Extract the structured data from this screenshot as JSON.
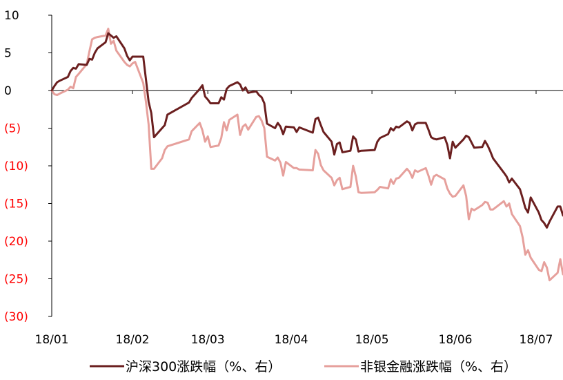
{
  "chart_data": {
    "type": "line",
    "title": "",
    "xlabel": "",
    "ylabel": "",
    "ylim": [
      -30,
      10
    ],
    "yticks": [
      {
        "value": 10,
        "label": "10",
        "color": "#000000"
      },
      {
        "value": 5,
        "label": "5",
        "color": "#000000"
      },
      {
        "value": 0,
        "label": "0",
        "color": "#000000"
      },
      {
        "value": -5,
        "label": "(5)",
        "color": "#ff0000"
      },
      {
        "value": -10,
        "label": "(10)",
        "color": "#ff0000"
      },
      {
        "value": -15,
        "label": "(15)",
        "color": "#ff0000"
      },
      {
        "value": -20,
        "label": "(20)",
        "color": "#ff0000"
      },
      {
        "value": -25,
        "label": "(25)",
        "color": "#ff0000"
      },
      {
        "value": -30,
        "label": "(30)",
        "color": "#ff0000"
      }
    ],
    "xlim": [
      "2018-01-02",
      "2018-07-11"
    ],
    "xticks": [
      {
        "date": "2018-01-02",
        "label": "18/01"
      },
      {
        "date": "2018-02-01",
        "label": "18/02"
      },
      {
        "date": "2018-03-01",
        "label": "18/03"
      },
      {
        "date": "2018-04-01",
        "label": "18/04"
      },
      {
        "date": "2018-05-01",
        "label": "18/05"
      },
      {
        "date": "2018-06-01",
        "label": "18/06"
      },
      {
        "date": "2018-07-01",
        "label": "18/07"
      }
    ],
    "grid": false,
    "legend_position": "bottom",
    "series": [
      {
        "name": "沪深300涨跌幅（%、右）",
        "color": "#6b1f1f",
        "points": [
          [
            "2018-01-02",
            0.0
          ],
          [
            "2018-01-03",
            0.6
          ],
          [
            "2018-01-04",
            1.1
          ],
          [
            "2018-01-05",
            1.3
          ],
          [
            "2018-01-08",
            1.8
          ],
          [
            "2018-01-09",
            2.6
          ],
          [
            "2018-01-10",
            3.0
          ],
          [
            "2018-01-11",
            2.9
          ],
          [
            "2018-01-12",
            3.5
          ],
          [
            "2018-01-15",
            3.4
          ],
          [
            "2018-01-16",
            4.2
          ],
          [
            "2018-01-17",
            4.1
          ],
          [
            "2018-01-18",
            5.0
          ],
          [
            "2018-01-19",
            5.6
          ],
          [
            "2018-01-22",
            6.4
          ],
          [
            "2018-01-23",
            7.6
          ],
          [
            "2018-01-24",
            7.3
          ],
          [
            "2018-01-25",
            7.0
          ],
          [
            "2018-01-26",
            7.2
          ],
          [
            "2018-01-29",
            5.6
          ],
          [
            "2018-01-30",
            4.6
          ],
          [
            "2018-01-31",
            4.0
          ],
          [
            "2018-02-01",
            4.5
          ],
          [
            "2018-02-02",
            4.5
          ],
          [
            "2018-02-05",
            4.5
          ],
          [
            "2018-02-06",
            1.5
          ],
          [
            "2018-02-07",
            -1.5
          ],
          [
            "2018-02-08",
            -3.0
          ],
          [
            "2018-02-09",
            -6.2
          ],
          [
            "2018-02-12",
            -5.0
          ],
          [
            "2018-02-13",
            -4.6
          ],
          [
            "2018-02-14",
            -3.2
          ],
          [
            "2018-02-22",
            -1.6
          ],
          [
            "2018-02-23",
            -1.0
          ],
          [
            "2018-02-26",
            0.2
          ],
          [
            "2018-02-27",
            0.7
          ],
          [
            "2018-02-28",
            -0.8
          ],
          [
            "2018-03-01",
            -1.2
          ],
          [
            "2018-03-02",
            -1.7
          ],
          [
            "2018-03-05",
            -1.7
          ],
          [
            "2018-03-06",
            -0.9
          ],
          [
            "2018-03-07",
            -1.2
          ],
          [
            "2018-03-08",
            0.2
          ],
          [
            "2018-03-09",
            0.6
          ],
          [
            "2018-03-12",
            1.1
          ],
          [
            "2018-03-13",
            0.8
          ],
          [
            "2018-03-14",
            0.0
          ],
          [
            "2018-03-15",
            0.4
          ],
          [
            "2018-03-16",
            -0.3
          ],
          [
            "2018-03-19",
            -0.1
          ],
          [
            "2018-03-20",
            -0.6
          ],
          [
            "2018-03-21",
            -0.9
          ],
          [
            "2018-03-22",
            -1.7
          ],
          [
            "2018-03-23",
            -4.4
          ],
          [
            "2018-03-26",
            -5.0
          ],
          [
            "2018-03-27",
            -4.3
          ],
          [
            "2018-03-28",
            -4.8
          ],
          [
            "2018-03-29",
            -5.8
          ],
          [
            "2018-03-30",
            -4.8
          ],
          [
            "2018-04-02",
            -4.9
          ],
          [
            "2018-04-03",
            -5.5
          ],
          [
            "2018-04-04",
            -4.9
          ],
          [
            "2018-04-09",
            -5.6
          ],
          [
            "2018-04-10",
            -3.8
          ],
          [
            "2018-04-11",
            -3.6
          ],
          [
            "2018-04-12",
            -4.6
          ],
          [
            "2018-04-13",
            -5.5
          ],
          [
            "2018-04-16",
            -6.8
          ],
          [
            "2018-04-17",
            -8.5
          ],
          [
            "2018-04-18",
            -7.1
          ],
          [
            "2018-04-19",
            -6.9
          ],
          [
            "2018-04-20",
            -8.2
          ],
          [
            "2018-04-23",
            -8.0
          ],
          [
            "2018-04-24",
            -6.1
          ],
          [
            "2018-04-25",
            -6.5
          ],
          [
            "2018-04-26",
            -8.1
          ],
          [
            "2018-04-27",
            -8.0
          ],
          [
            "2018-05-02",
            -7.9
          ],
          [
            "2018-05-03",
            -6.8
          ],
          [
            "2018-05-04",
            -6.3
          ],
          [
            "2018-05-07",
            -5.8
          ],
          [
            "2018-05-08",
            -5.0
          ],
          [
            "2018-05-09",
            -5.3
          ],
          [
            "2018-05-10",
            -4.8
          ],
          [
            "2018-05-11",
            -4.9
          ],
          [
            "2018-05-14",
            -4.1
          ],
          [
            "2018-05-15",
            -4.3
          ],
          [
            "2018-05-16",
            -5.3
          ],
          [
            "2018-05-17",
            -4.5
          ],
          [
            "2018-05-18",
            -4.3
          ],
          [
            "2018-05-21",
            -4.3
          ],
          [
            "2018-05-22",
            -5.2
          ],
          [
            "2018-05-23",
            -6.2
          ],
          [
            "2018-05-24",
            -6.4
          ],
          [
            "2018-05-25",
            -6.5
          ],
          [
            "2018-05-28",
            -6.2
          ],
          [
            "2018-05-29",
            -7.2
          ],
          [
            "2018-05-30",
            -9.0
          ],
          [
            "2018-05-31",
            -6.8
          ],
          [
            "2018-06-01",
            -7.6
          ],
          [
            "2018-06-04",
            -6.5
          ],
          [
            "2018-06-05",
            -6.0
          ],
          [
            "2018-06-06",
            -6.2
          ],
          [
            "2018-06-07",
            -6.9
          ],
          [
            "2018-06-08",
            -7.6
          ],
          [
            "2018-06-11",
            -7.5
          ],
          [
            "2018-06-12",
            -6.7
          ],
          [
            "2018-06-13",
            -7.3
          ],
          [
            "2018-06-14",
            -8.1
          ],
          [
            "2018-06-15",
            -9.0
          ],
          [
            "2018-06-19",
            -10.9
          ],
          [
            "2018-06-20",
            -11.4
          ],
          [
            "2018-06-21",
            -12.2
          ],
          [
            "2018-06-22",
            -11.7
          ],
          [
            "2018-06-25",
            -13.1
          ],
          [
            "2018-06-26",
            -14.3
          ],
          [
            "2018-06-27",
            -15.6
          ],
          [
            "2018-06-28",
            -16.2
          ],
          [
            "2018-06-29",
            -14.2
          ],
          [
            "2018-07-02",
            -16.2
          ],
          [
            "2018-07-03",
            -17.2
          ],
          [
            "2018-07-04",
            -17.6
          ],
          [
            "2018-07-05",
            -18.2
          ],
          [
            "2018-07-06",
            -17.4
          ],
          [
            "2018-07-09",
            -15.4
          ],
          [
            "2018-07-10",
            -15.4
          ],
          [
            "2018-07-11",
            -16.6
          ]
        ]
      },
      {
        "name": "非银金融涨跌幅（%、右）",
        "color": "#e6a09c",
        "points": [
          [
            "2018-01-02",
            0.0
          ],
          [
            "2018-01-03",
            -0.5
          ],
          [
            "2018-01-04",
            -0.6
          ],
          [
            "2018-01-05",
            -0.4
          ],
          [
            "2018-01-08",
            0.1
          ],
          [
            "2018-01-09",
            0.5
          ],
          [
            "2018-01-10",
            0.3
          ],
          [
            "2018-01-11",
            1.8
          ],
          [
            "2018-01-12",
            2.2
          ],
          [
            "2018-01-15",
            3.5
          ],
          [
            "2018-01-16",
            5.2
          ],
          [
            "2018-01-17",
            6.8
          ],
          [
            "2018-01-18",
            7.0
          ],
          [
            "2018-01-19",
            7.1
          ],
          [
            "2018-01-22",
            7.3
          ],
          [
            "2018-01-23",
            8.2
          ],
          [
            "2018-01-24",
            6.2
          ],
          [
            "2018-01-25",
            6.6
          ],
          [
            "2018-01-26",
            5.3
          ],
          [
            "2018-01-29",
            3.8
          ],
          [
            "2018-01-30",
            3.4
          ],
          [
            "2018-01-31",
            3.2
          ],
          [
            "2018-02-01",
            3.6
          ],
          [
            "2018-02-02",
            3.8
          ],
          [
            "2018-02-05",
            1.0
          ],
          [
            "2018-02-06",
            -1.5
          ],
          [
            "2018-02-07",
            -4.5
          ],
          [
            "2018-02-08",
            -10.4
          ],
          [
            "2018-02-09",
            -10.4
          ],
          [
            "2018-02-12",
            -9.0
          ],
          [
            "2018-02-13",
            -7.9
          ],
          [
            "2018-02-14",
            -7.4
          ],
          [
            "2018-02-22",
            -6.5
          ],
          [
            "2018-02-23",
            -5.4
          ],
          [
            "2018-02-26",
            -4.3
          ],
          [
            "2018-02-27",
            -5.3
          ],
          [
            "2018-02-28",
            -6.8
          ],
          [
            "2018-03-01",
            -6.1
          ],
          [
            "2018-03-02",
            -7.5
          ],
          [
            "2018-03-05",
            -7.3
          ],
          [
            "2018-03-06",
            -6.3
          ],
          [
            "2018-03-07",
            -4.2
          ],
          [
            "2018-03-08",
            -5.3
          ],
          [
            "2018-03-09",
            -3.9
          ],
          [
            "2018-03-12",
            -3.2
          ],
          [
            "2018-03-13",
            -5.9
          ],
          [
            "2018-03-14",
            -4.8
          ],
          [
            "2018-03-15",
            -4.5
          ],
          [
            "2018-03-16",
            -5.2
          ],
          [
            "2018-03-19",
            -3.5
          ],
          [
            "2018-03-20",
            -3.4
          ],
          [
            "2018-03-21",
            -4.0
          ],
          [
            "2018-03-22",
            -5.0
          ],
          [
            "2018-03-23",
            -8.8
          ],
          [
            "2018-03-26",
            -9.3
          ],
          [
            "2018-03-27",
            -8.9
          ],
          [
            "2018-03-28",
            -9.6
          ],
          [
            "2018-03-29",
            -11.3
          ],
          [
            "2018-03-30",
            -9.5
          ],
          [
            "2018-04-02",
            -10.3
          ],
          [
            "2018-04-03",
            -10.3
          ],
          [
            "2018-04-04",
            -10.5
          ],
          [
            "2018-04-09",
            -10.6
          ],
          [
            "2018-04-10",
            -7.9
          ],
          [
            "2018-04-11",
            -8.4
          ],
          [
            "2018-04-12",
            -9.9
          ],
          [
            "2018-04-13",
            -10.6
          ],
          [
            "2018-04-16",
            -11.6
          ],
          [
            "2018-04-17",
            -12.6
          ],
          [
            "2018-04-18",
            -11.9
          ],
          [
            "2018-04-19",
            -11.6
          ],
          [
            "2018-04-20",
            -13.1
          ],
          [
            "2018-04-23",
            -12.8
          ],
          [
            "2018-04-24",
            -10.0
          ],
          [
            "2018-04-25",
            -11.4
          ],
          [
            "2018-04-26",
            -13.5
          ],
          [
            "2018-04-27",
            -13.6
          ],
          [
            "2018-05-02",
            -13.5
          ],
          [
            "2018-05-03",
            -13.2
          ],
          [
            "2018-05-04",
            -12.8
          ],
          [
            "2018-05-07",
            -13.0
          ],
          [
            "2018-05-08",
            -11.8
          ],
          [
            "2018-05-09",
            -12.4
          ],
          [
            "2018-05-10",
            -11.7
          ],
          [
            "2018-05-11",
            -11.6
          ],
          [
            "2018-05-14",
            -10.4
          ],
          [
            "2018-05-15",
            -10.8
          ],
          [
            "2018-05-16",
            -11.6
          ],
          [
            "2018-05-17",
            -10.6
          ],
          [
            "2018-05-18",
            -10.8
          ],
          [
            "2018-05-21",
            -10.3
          ],
          [
            "2018-05-22",
            -11.3
          ],
          [
            "2018-05-23",
            -12.5
          ],
          [
            "2018-05-24",
            -11.4
          ],
          [
            "2018-05-25",
            -11.2
          ],
          [
            "2018-05-28",
            -11.8
          ],
          [
            "2018-05-29",
            -13.0
          ],
          [
            "2018-05-30",
            -13.7
          ],
          [
            "2018-05-31",
            -14.1
          ],
          [
            "2018-06-01",
            -14.0
          ],
          [
            "2018-06-04",
            -12.6
          ],
          [
            "2018-06-05",
            -14.0
          ],
          [
            "2018-06-06",
            -17.1
          ],
          [
            "2018-06-07",
            -15.7
          ],
          [
            "2018-06-08",
            -15.9
          ],
          [
            "2018-06-11",
            -15.2
          ],
          [
            "2018-06-12",
            -14.8
          ],
          [
            "2018-06-13",
            -14.9
          ],
          [
            "2018-06-14",
            -15.8
          ],
          [
            "2018-06-15",
            -15.8
          ],
          [
            "2018-06-19",
            -14.7
          ],
          [
            "2018-06-20",
            -15.4
          ],
          [
            "2018-06-21",
            -15.0
          ],
          [
            "2018-06-22",
            -16.4
          ],
          [
            "2018-06-25",
            -18.0
          ],
          [
            "2018-06-26",
            -19.5
          ],
          [
            "2018-06-27",
            -21.8
          ],
          [
            "2018-06-28",
            -21.2
          ],
          [
            "2018-06-29",
            -22.2
          ],
          [
            "2018-07-02",
            -23.8
          ],
          [
            "2018-07-03",
            -24.0
          ],
          [
            "2018-07-04",
            -22.8
          ],
          [
            "2018-07-05",
            -23.5
          ],
          [
            "2018-07-06",
            -25.2
          ],
          [
            "2018-07-09",
            -24.2
          ],
          [
            "2018-07-10",
            -22.4
          ],
          [
            "2018-07-11",
            -24.4
          ]
        ]
      }
    ]
  }
}
